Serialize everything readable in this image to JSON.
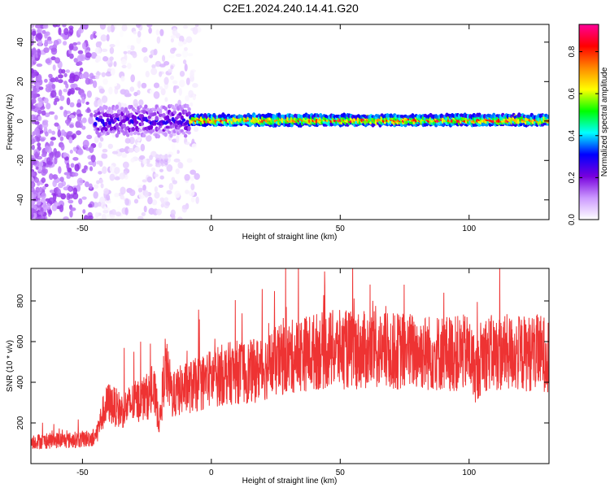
{
  "title": "C2E1.2024.240.14.41.G20",
  "chart_data": [
    {
      "type": "heatmap",
      "xlabel": "Height of straight line (km)",
      "ylabel": "Frequency (Hz)",
      "xlim": [
        -70,
        131
      ],
      "ylim": [
        -50,
        49
      ],
      "xticks": [
        -50,
        0,
        50,
        100
      ],
      "yticks": [
        -40,
        -20,
        0,
        20,
        40
      ],
      "colorbar": {
        "label": "Normalized spectral amplitude",
        "range": [
          0,
          0.93
        ],
        "ticks": [
          0.0,
          0.2,
          0.4,
          0.6,
          0.8
        ],
        "colors": [
          "#ffffff",
          "#cc99ff",
          "#7700dd",
          "#0000ff",
          "#00ffff",
          "#00ff00",
          "#ffff00",
          "#ff8800",
          "#ff0000",
          "#ff0099"
        ]
      },
      "bands": [
        {
          "x_start": -45,
          "x_end": -8,
          "freq_center": 0,
          "freq_halfwidth": 6,
          "amplitude": 0.3
        },
        {
          "x_start": -8,
          "x_end": 131,
          "freq_center": 0.5,
          "freq_halfwidth": 2,
          "amplitude": 0.9
        },
        {
          "x_start": -21,
          "x_end": -17,
          "freq_center": -20,
          "freq_halfwidth": 2,
          "amplitude": 0.1
        }
      ],
      "grid": false
    },
    {
      "type": "line",
      "xlabel": "Height of straight line (km)",
      "ylabel": "SNR (10 * v/v)",
      "xlim": [
        -70,
        131
      ],
      "ylim": [
        0,
        960
      ],
      "xticks": [
        -50,
        0,
        50,
        100
      ],
      "yticks": [
        200,
        400,
        600,
        800
      ],
      "color": "#ee3333",
      "grid": false,
      "series": [
        {
          "x": [
            -70,
            -65,
            -60,
            -55,
            -50,
            -45,
            -42,
            -40,
            -35,
            -30,
            -25,
            -22,
            -20,
            -18,
            -15,
            -12,
            -10,
            -5,
            0,
            5,
            10,
            15,
            20,
            25,
            30,
            35,
            40,
            45,
            50,
            55,
            60,
            65,
            70,
            75,
            80,
            85,
            90,
            95,
            100,
            103,
            105,
            110,
            115,
            120,
            125,
            131
          ],
          "y": [
            110,
            110,
            115,
            115,
            120,
            130,
            250,
            300,
            260,
            300,
            330,
            340,
            200,
            480,
            330,
            360,
            370,
            390,
            420,
            440,
            450,
            450,
            470,
            500,
            520,
            540,
            550,
            560,
            560,
            560,
            555,
            555,
            550,
            555,
            550,
            545,
            545,
            540,
            545,
            440,
            550,
            540,
            545,
            540,
            545,
            540
          ]
        }
      ]
    }
  ]
}
